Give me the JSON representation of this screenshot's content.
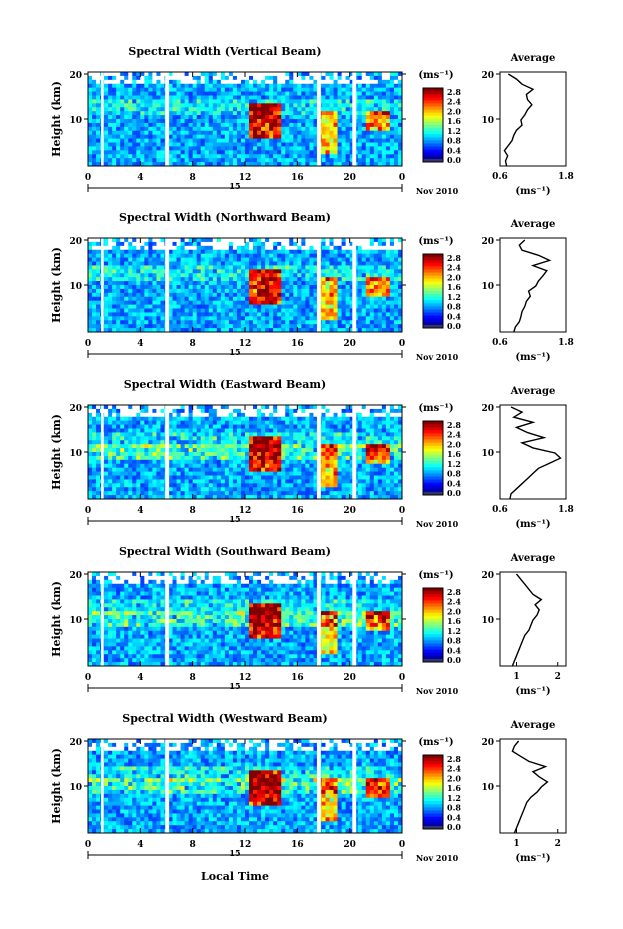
{
  "figure": {
    "xlabel": "Local Time",
    "date_label": "Nov 2010",
    "day_label": "15"
  },
  "chart_data": [
    {
      "type": "heatmap",
      "title": "Spectral Width (Vertical Beam)",
      "ylabel": "Height (km)",
      "x_ticks": [
        "0",
        "4",
        "8",
        "12",
        "16",
        "20",
        "0"
      ],
      "y_ticks": [
        "20",
        "10"
      ],
      "colorbar": {
        "unit": "(ms⁻¹)",
        "ticks": [
          "2.8",
          "2.4",
          "2.0",
          "1.6",
          "1.2",
          "0.8",
          "0.4",
          "0.0"
        ]
      },
      "average": {
        "title": "Average",
        "xlabel": "(ms⁻¹)",
        "x_ticks": [
          "0.6",
          "1.8"
        ],
        "xlim": [
          0.6,
          1.8
        ],
        "y_ticks": [
          "20",
          "10"
        ],
        "profile": [
          [
            0.72,
            2
          ],
          [
            0.7,
            3
          ],
          [
            0.74,
            4
          ],
          [
            0.68,
            5
          ],
          [
            0.75,
            6
          ],
          [
            0.82,
            7
          ],
          [
            0.85,
            8
          ],
          [
            0.9,
            9
          ],
          [
            1.0,
            10
          ],
          [
            0.98,
            11
          ],
          [
            1.05,
            12
          ],
          [
            1.1,
            13
          ],
          [
            1.18,
            14
          ],
          [
            1.1,
            15
          ],
          [
            1.08,
            16
          ],
          [
            1.2,
            17
          ],
          [
            1.0,
            18
          ],
          [
            0.9,
            19
          ],
          [
            0.75,
            20
          ]
        ]
      }
    },
    {
      "type": "heatmap",
      "title": "Spectral Width (Northward Beam)",
      "ylabel": "Height (km)",
      "x_ticks": [
        "0",
        "4",
        "8",
        "12",
        "16",
        "20",
        "0"
      ],
      "y_ticks": [
        "20",
        "10"
      ],
      "colorbar": {
        "unit": "(ms⁻¹)",
        "ticks": [
          "2.8",
          "2.4",
          "2.0",
          "1.6",
          "1.2",
          "0.8",
          "0.4",
          "0.0"
        ]
      },
      "average": {
        "title": "Average",
        "xlabel": "(ms⁻¹)",
        "x_ticks": [
          "0.6",
          "1.8"
        ],
        "xlim": [
          0.6,
          1.8
        ],
        "y_ticks": [
          "20",
          "10"
        ],
        "profile": [
          [
            0.85,
            2
          ],
          [
            0.88,
            3
          ],
          [
            0.95,
            4
          ],
          [
            0.98,
            5
          ],
          [
            1.0,
            6
          ],
          [
            1.05,
            7
          ],
          [
            1.08,
            8
          ],
          [
            1.15,
            9
          ],
          [
            1.12,
            10
          ],
          [
            1.25,
            11
          ],
          [
            1.3,
            12
          ],
          [
            1.38,
            13
          ],
          [
            1.45,
            14
          ],
          [
            1.2,
            15
          ],
          [
            1.5,
            16
          ],
          [
            1.3,
            17
          ],
          [
            1.0,
            18
          ],
          [
            0.95,
            19
          ],
          [
            1.05,
            20
          ]
        ]
      }
    },
    {
      "type": "heatmap",
      "title": "Spectral Width (Eastward Beam)",
      "ylabel": "Height (km)",
      "x_ticks": [
        "0",
        "4",
        "8",
        "12",
        "16",
        "20",
        "0"
      ],
      "y_ticks": [
        "20",
        "10"
      ],
      "colorbar": {
        "unit": "(ms⁻¹)",
        "ticks": [
          "2.8",
          "2.4",
          "2.0",
          "1.6",
          "1.2",
          "0.8",
          "0.4",
          "0.0"
        ]
      },
      "average": {
        "title": "Average",
        "xlabel": "(ms⁻¹)",
        "x_ticks": [
          "0.6",
          "1.8"
        ],
        "xlim": [
          0.6,
          1.8
        ],
        "y_ticks": [
          "20",
          "10"
        ],
        "profile": [
          [
            0.78,
            2
          ],
          [
            0.8,
            3
          ],
          [
            0.9,
            4
          ],
          [
            1.0,
            5
          ],
          [
            1.1,
            6
          ],
          [
            1.2,
            7
          ],
          [
            1.3,
            8
          ],
          [
            1.5,
            9
          ],
          [
            1.7,
            10
          ],
          [
            1.6,
            11
          ],
          [
            1.2,
            12
          ],
          [
            1.0,
            13
          ],
          [
            1.4,
            14
          ],
          [
            1.1,
            15
          ],
          [
            0.9,
            16
          ],
          [
            1.2,
            17
          ],
          [
            0.85,
            18
          ],
          [
            1.0,
            19
          ],
          [
            0.8,
            20
          ]
        ]
      }
    },
    {
      "type": "heatmap",
      "title": "Spectral Width (Southward Beam)",
      "ylabel": "Height (km)",
      "x_ticks": [
        "0",
        "4",
        "8",
        "12",
        "16",
        "20",
        "0"
      ],
      "y_ticks": [
        "20",
        "10"
      ],
      "colorbar": {
        "unit": "(ms⁻¹)",
        "ticks": [
          "2.8",
          "2.4",
          "2.0",
          "1.6",
          "1.2",
          "0.8",
          "0.4",
          "0.0"
        ]
      },
      "average": {
        "title": "Average",
        "xlabel": "(ms⁻¹)",
        "x_ticks": [
          "1",
          "2"
        ],
        "xlim": [
          0.6,
          2.2
        ],
        "y_ticks": [
          "20",
          "10"
        ],
        "profile": [
          [
            0.9,
            2
          ],
          [
            0.95,
            3
          ],
          [
            1.0,
            4
          ],
          [
            1.05,
            5
          ],
          [
            1.1,
            6
          ],
          [
            1.15,
            7
          ],
          [
            1.2,
            8
          ],
          [
            1.3,
            9
          ],
          [
            1.35,
            10
          ],
          [
            1.4,
            11
          ],
          [
            1.5,
            12
          ],
          [
            1.55,
            13
          ],
          [
            1.45,
            14
          ],
          [
            1.6,
            15
          ],
          [
            1.4,
            16
          ],
          [
            1.3,
            17
          ],
          [
            1.2,
            18
          ],
          [
            1.1,
            19
          ],
          [
            1.0,
            20
          ]
        ]
      }
    },
    {
      "type": "heatmap",
      "title": "Spectral Width (Westward Beam)",
      "ylabel": "Height (km)",
      "x_ticks": [
        "0",
        "4",
        "8",
        "12",
        "16",
        "20",
        "0"
      ],
      "y_ticks": [
        "20",
        "10"
      ],
      "colorbar": {
        "unit": "(ms⁻¹)",
        "ticks": [
          "2.8",
          "2.4",
          "2.0",
          "1.6",
          "1.2",
          "0.8",
          "0.4",
          "0.0"
        ]
      },
      "average": {
        "title": "Average",
        "xlabel": "(ms⁻¹)",
        "x_ticks": [
          "1",
          "2"
        ],
        "xlim": [
          0.6,
          2.2
        ],
        "y_ticks": [
          "20",
          "10"
        ],
        "profile": [
          [
            0.95,
            2
          ],
          [
            1.0,
            3
          ],
          [
            1.05,
            4
          ],
          [
            1.1,
            5
          ],
          [
            1.15,
            6
          ],
          [
            1.2,
            7
          ],
          [
            1.25,
            8
          ],
          [
            1.35,
            9
          ],
          [
            1.5,
            10
          ],
          [
            1.6,
            11
          ],
          [
            1.75,
            12
          ],
          [
            1.55,
            13
          ],
          [
            1.4,
            14
          ],
          [
            1.7,
            15
          ],
          [
            1.3,
            16
          ],
          [
            1.1,
            17
          ],
          [
            0.9,
            18
          ],
          [
            0.95,
            19
          ],
          [
            1.05,
            20
          ]
        ]
      }
    }
  ]
}
